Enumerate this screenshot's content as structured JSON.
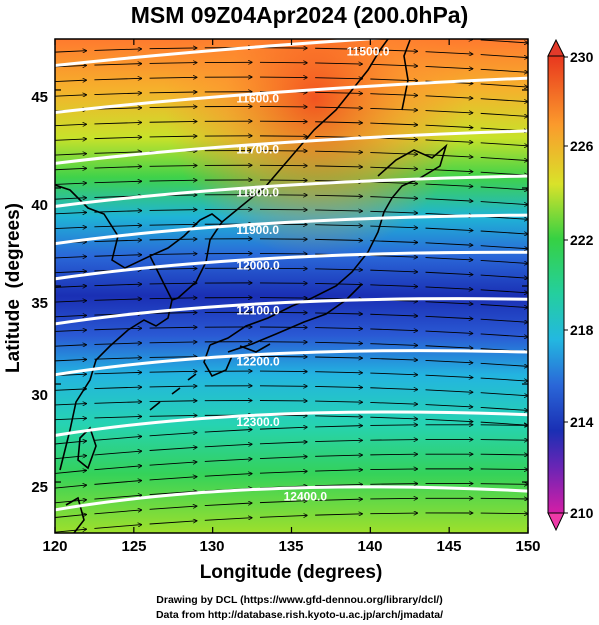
{
  "title": "MSM 09Z04Apr2024 (200.0hPa)",
  "xaxis": {
    "label": "Longitude (degrees)",
    "ticks": [
      "120",
      "125",
      "130",
      "135",
      "140",
      "145",
      "150"
    ],
    "range": [
      120,
      150
    ]
  },
  "yaxis": {
    "label": "Latitude  (degrees)",
    "ticks": [
      "25",
      "30",
      "35",
      "40",
      "45"
    ],
    "range": [
      22.4,
      47.6
    ]
  },
  "colorbar": {
    "ticks": [
      "230",
      "226",
      "222",
      "218",
      "214",
      "210"
    ],
    "range": [
      210,
      230
    ]
  },
  "contours": [
    {
      "label": "11500.0",
      "lat_at_130": 46.6
    },
    {
      "label": "11600.0",
      "lat_at_130": 44.2
    },
    {
      "label": "11700.0",
      "lat_at_130": 41.6
    },
    {
      "label": "11800.0",
      "lat_at_130": 39.4
    },
    {
      "label": "11900.0",
      "lat_at_130": 37.5
    },
    {
      "label": "12000.0",
      "lat_at_130": 35.7
    },
    {
      "label": "12100.0",
      "lat_at_130": 33.4
    },
    {
      "label": "12200.0",
      "lat_at_130": 30.8
    },
    {
      "label": "12300.0",
      "lat_at_130": 27.7
    },
    {
      "label": "12400.0",
      "lat_at_130": 23.9
    }
  ],
  "credits": [
    "Drawing by DCL (https://www.gfd-dennou.org/library/dcl/)",
    "Data from http://database.rish.kyoto-u.ac.jp/arch/jmadata/"
  ]
}
